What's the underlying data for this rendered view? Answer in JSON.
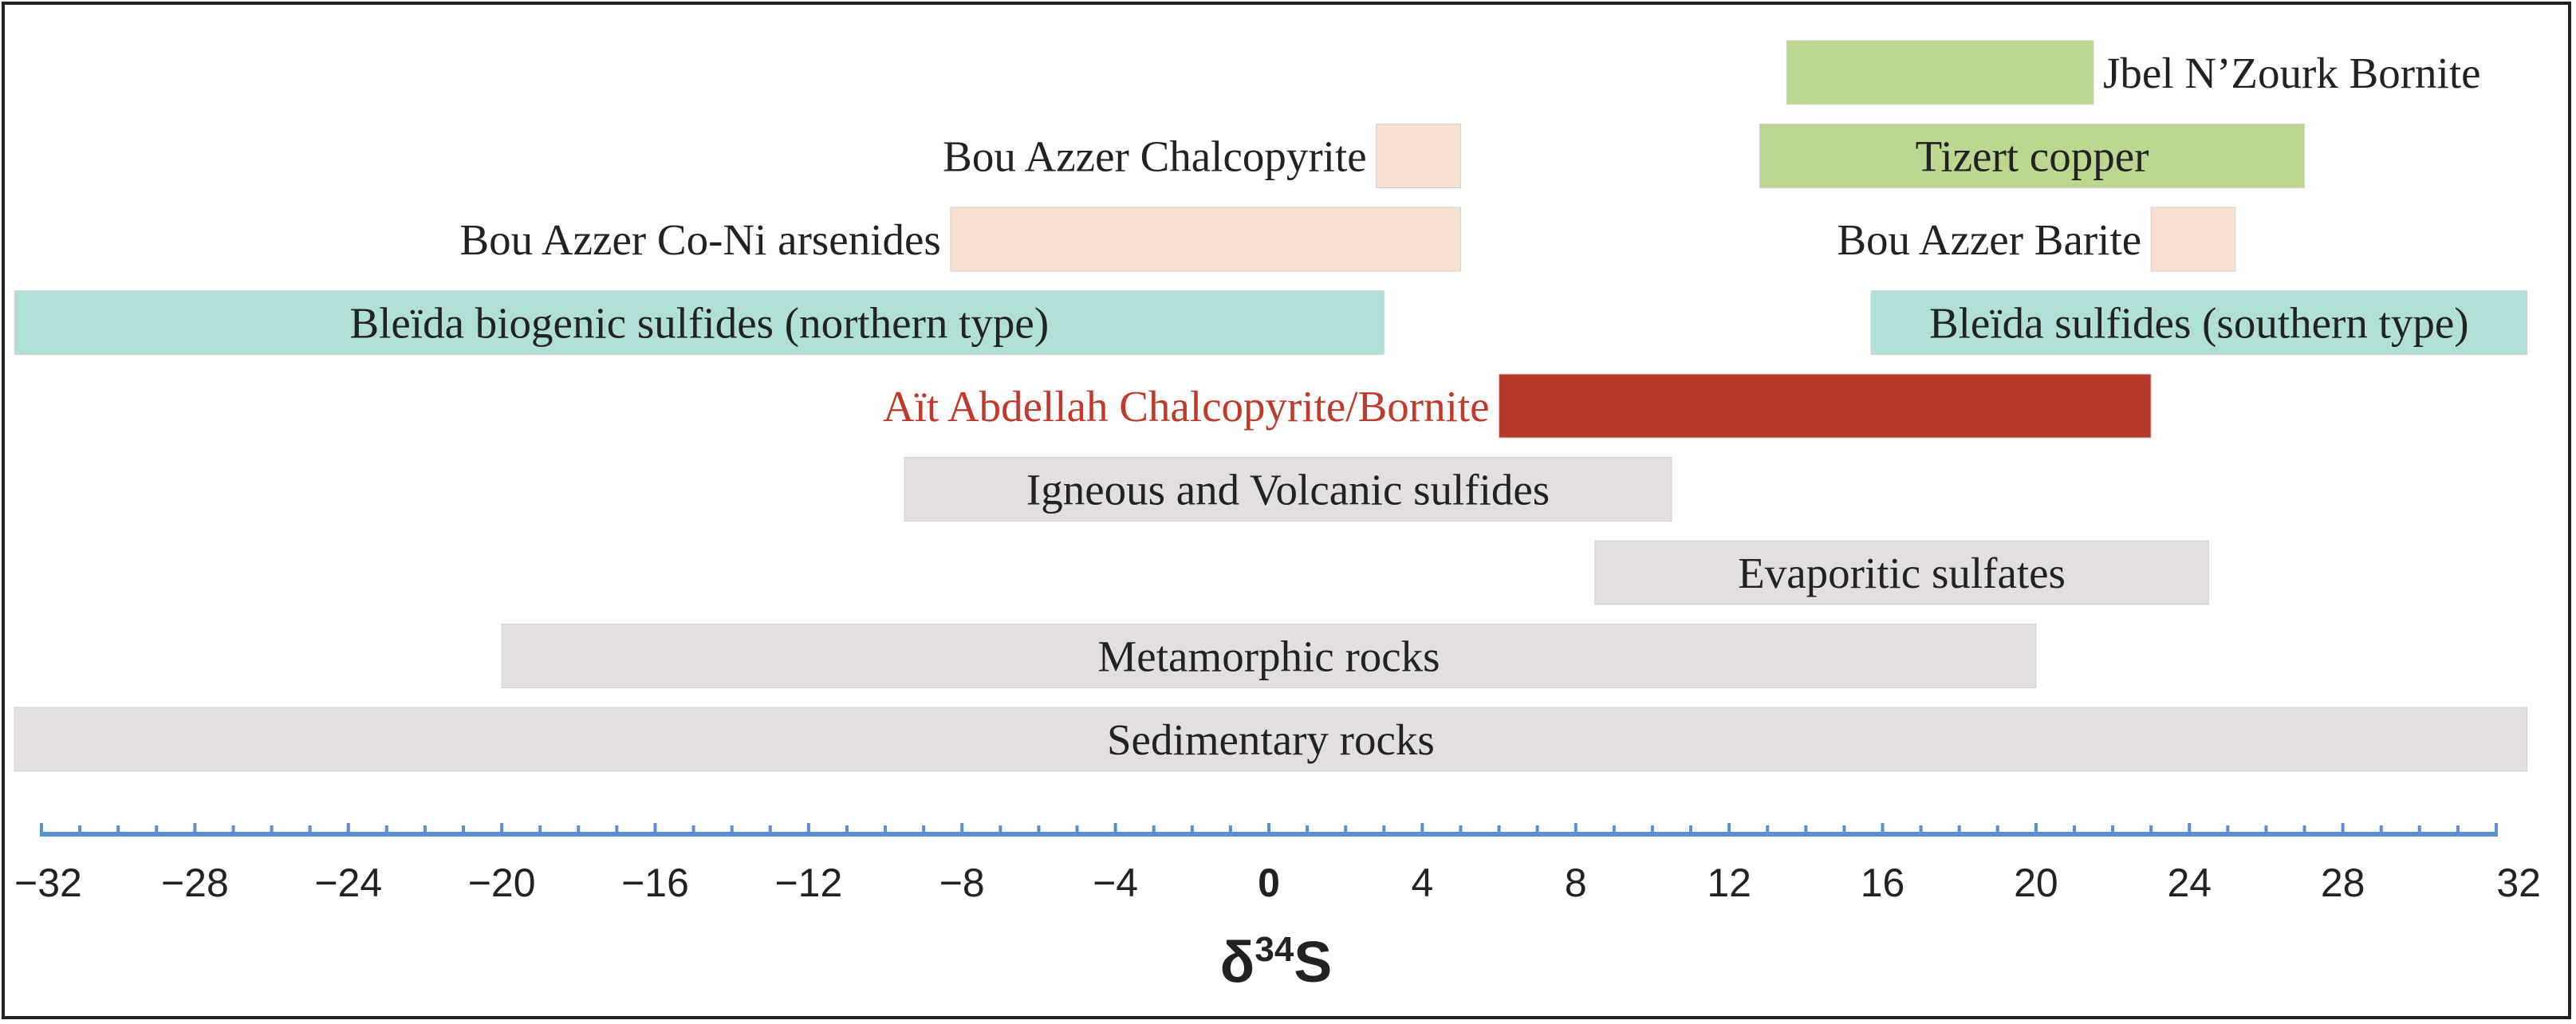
{
  "chart_data": {
    "type": "range-bar",
    "title": "",
    "xlabel": "δ34S",
    "xlabel_parts": {
      "base": "δ",
      "sup": "34",
      "tail": "S"
    },
    "xlim": [
      -32,
      32
    ],
    "xticks": [
      -32,
      -28,
      -24,
      -20,
      -16,
      -12,
      -8,
      -4,
      0,
      4,
      8,
      12,
      16,
      20,
      24,
      28,
      32
    ],
    "xtick_labels": [
      "−32",
      "−28",
      "−24",
      "−20",
      "−16",
      "−12",
      "−8",
      "−4",
      "0",
      "4",
      "8",
      "12",
      "16",
      "20",
      "24",
      "28",
      "32"
    ],
    "axis_color": "#5b8fd1",
    "bars": [
      {
        "label": "Jbel N’Zourk Bornite",
        "start": 13.5,
        "end": 21.5,
        "row": 0,
        "color": "#bcd890",
        "label_pos": "right",
        "label_color": "#222222"
      },
      {
        "label": "Bou Azzer Chalcopyrite",
        "start": 2.8,
        "end": 5.0,
        "row": 1,
        "color": "#f7dfd3",
        "label_pos": "left",
        "label_color": "#222222"
      },
      {
        "label": "Tizert copper",
        "start": 12.8,
        "end": 27.0,
        "row": 1,
        "color": "#bcd890",
        "label_pos": "inside",
        "label_color": "#222222"
      },
      {
        "label": "Bou Azzer Co-Ni arsenides",
        "start": -8.3,
        "end": 5.0,
        "row": 2,
        "color": "#f7dfd3",
        "label_pos": "left",
        "label_color": "#222222"
      },
      {
        "label": "Bou Azzer Barite",
        "start": 23.0,
        "end": 25.2,
        "row": 2,
        "color": "#f7dfd3",
        "label_pos": "left",
        "label_color": "#222222"
      },
      {
        "label": "Bleïda biogenic sulfides (northern type)",
        "start": -32.7,
        "end": 3.0,
        "row": 3,
        "color": "#b0dfd8",
        "label_pos": "inside",
        "label_color": "#222222"
      },
      {
        "label": "Bleïda sulfides (southern type)",
        "start": 15.7,
        "end": 32.8,
        "row": 3,
        "color": "#b0dfd8",
        "label_pos": "inside",
        "label_color": "#222222"
      },
      {
        "label": "Aït Abdellah Chalcopyrite/Bornite",
        "start": 6.0,
        "end": 23.0,
        "row": 4,
        "color": "#b5392b",
        "label_pos": "left",
        "label_color": "#c0392b"
      },
      {
        "label": "Igneous  and Volcanic sulfides",
        "start": -9.5,
        "end": 10.5,
        "row": 5,
        "color": "#e2dfde",
        "label_pos": "inside",
        "label_color": "#222222"
      },
      {
        "label": "Evaporitic sulfates",
        "start": 8.5,
        "end": 24.5,
        "row": 6,
        "color": "#e2dfde",
        "label_pos": "inside",
        "label_color": "#222222"
      },
      {
        "label": "Metamorphic rocks",
        "start": -20.0,
        "end": 20.0,
        "row": 7,
        "color": "#e2dfde",
        "label_pos": "inside",
        "label_color": "#222222"
      },
      {
        "label": "Sedimentary rocks",
        "start": -32.7,
        "end": 32.8,
        "row": 8,
        "color": "#e2dfde",
        "label_pos": "inside",
        "label_color": "#222222"
      }
    ]
  }
}
